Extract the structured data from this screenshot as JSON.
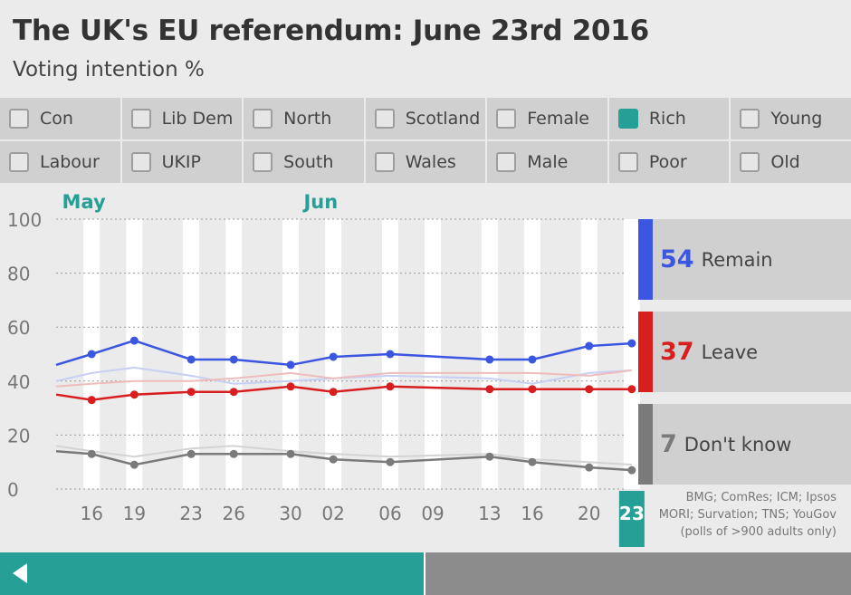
{
  "header": {
    "title": "The UK's EU referendum: June 23rd 2016",
    "subtitle": "Voting intention %"
  },
  "filters": [
    {
      "label": "Con",
      "checked": false
    },
    {
      "label": "Lib Dem",
      "checked": false
    },
    {
      "label": "North",
      "checked": false
    },
    {
      "label": "Scotland",
      "checked": false
    },
    {
      "label": "Female",
      "checked": false
    },
    {
      "label": "Rich",
      "checked": true
    },
    {
      "label": "Young",
      "checked": false
    },
    {
      "label": "Labour",
      "checked": false
    },
    {
      "label": "UKIP",
      "checked": false
    },
    {
      "label": "South",
      "checked": false
    },
    {
      "label": "Wales",
      "checked": false
    },
    {
      "label": "Male",
      "checked": false
    },
    {
      "label": "Poor",
      "checked": false
    },
    {
      "label": "Old",
      "checked": false
    }
  ],
  "legend": {
    "remain": {
      "value": "54",
      "label": "Remain",
      "color": "#3b56e0"
    },
    "leave": {
      "value": "37",
      "label": "Leave",
      "color": "#d81e1e"
    },
    "dontknow": {
      "value": "7",
      "label": "Don't know",
      "color": "#7a7a7a"
    }
  },
  "source": {
    "line1": "BMG; ComRes; ICM; Ipsos",
    "line2": "MORI; Survation; TNS; YouGov",
    "line3": "(polls of >900 adults only)"
  },
  "timeline": {
    "progress_fraction": 0.5,
    "accent": "#26a096"
  },
  "chart_data": {
    "type": "line",
    "title": "The UK's EU referendum: June 23rd 2016",
    "ylabel": "Voting intention %",
    "ylim": [
      0,
      100
    ],
    "yticks": [
      "0",
      "20",
      "40",
      "60",
      "80",
      "100"
    ],
    "x_range_days": [
      13.5,
      53.5
    ],
    "month_labels": [
      {
        "label": "May",
        "day": 15
      },
      {
        "label": "Jun",
        "day": 32
      }
    ],
    "xticks": [
      {
        "day": 16,
        "label": "16"
      },
      {
        "day": 19,
        "label": "19"
      },
      {
        "day": 23,
        "label": "23"
      },
      {
        "day": 26,
        "label": "26"
      },
      {
        "day": 30,
        "label": "30"
      },
      {
        "day": 33,
        "label": "02"
      },
      {
        "day": 37,
        "label": "06"
      },
      {
        "day": 40,
        "label": "09"
      },
      {
        "day": 44,
        "label": "13"
      },
      {
        "day": 47,
        "label": "16"
      },
      {
        "day": 51,
        "label": "20"
      },
      {
        "day": 54,
        "label": "23",
        "highlight": true
      }
    ],
    "stripe_days": [
      16,
      19,
      23,
      26,
      30,
      33,
      37,
      40,
      44,
      47,
      51,
      54
    ],
    "series": [
      {
        "name": "Remain",
        "color": "#3b56e0",
        "x": [
          13.5,
          16,
          19,
          23,
          26,
          30,
          33,
          37,
          44,
          47,
          51,
          54
        ],
        "values": [
          46,
          50,
          55,
          48,
          48,
          46,
          49,
          50,
          48,
          48,
          53,
          54
        ]
      },
      {
        "name": "Leave",
        "color": "#d81e1e",
        "x": [
          13.5,
          16,
          19,
          23,
          26,
          30,
          33,
          37,
          44,
          47,
          51,
          54
        ],
        "values": [
          35,
          33,
          35,
          36,
          36,
          38,
          36,
          38,
          37,
          37,
          37,
          37
        ]
      },
      {
        "name": "Don't know",
        "color": "#7a7a7a",
        "x": [
          13.5,
          16,
          19,
          23,
          26,
          30,
          33,
          37,
          44,
          47,
          51,
          54
        ],
        "values": [
          14,
          13,
          9,
          13,
          13,
          13,
          11,
          10,
          12,
          10,
          8,
          7
        ]
      }
    ],
    "background_series": [
      {
        "name": "Remain (all)",
        "color": "#c7cff4",
        "x": [
          13.5,
          16,
          19,
          23,
          26,
          30,
          33,
          37,
          44,
          47,
          51,
          54
        ],
        "values": [
          40,
          43,
          45,
          42,
          39,
          40,
          41,
          42,
          41,
          39,
          43,
          44
        ]
      },
      {
        "name": "Leave (all)",
        "color": "#efbcbc",
        "x": [
          13.5,
          16,
          19,
          23,
          26,
          30,
          33,
          37,
          44,
          47,
          51,
          54
        ],
        "values": [
          38,
          39,
          40,
          40,
          41,
          43,
          41,
          43,
          43,
          43,
          42,
          44
        ]
      },
      {
        "name": "Don't know (all)",
        "color": "#d3d3d3",
        "x": [
          13.5,
          16,
          19,
          23,
          26,
          30,
          33,
          37,
          44,
          47,
          51,
          54
        ],
        "values": [
          16,
          14,
          12,
          15,
          16,
          14,
          13,
          12,
          13,
          11,
          10,
          9
        ]
      }
    ]
  }
}
